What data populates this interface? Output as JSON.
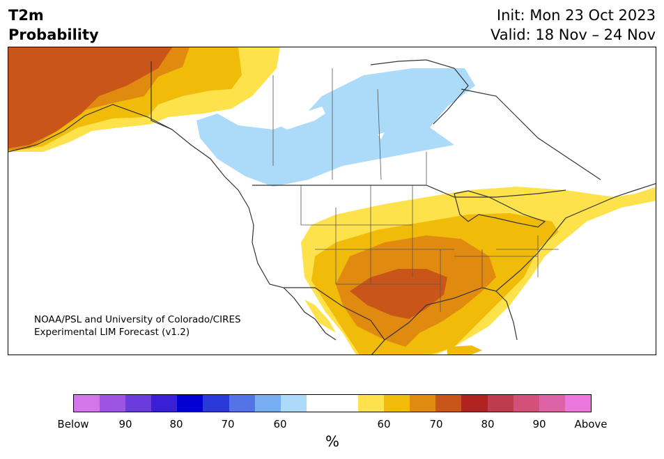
{
  "title": {
    "line1": "T2m",
    "line2": "Probability"
  },
  "init": {
    "line1": "Init: Mon 23 Oct 2023",
    "line2": "Valid: 18 Nov – 24 Nov"
  },
  "credit": {
    "line1": "NOAA/PSL and University of Colorado/CIRES",
    "line2": "Experimental LIM Forecast (v1.2)"
  },
  "colorbar": {
    "colors": [
      "#d376ea",
      "#9f53e3",
      "#6c3bdb",
      "#3a1fd6",
      "#0000d0",
      "#2a3ad8",
      "#5274e6",
      "#77adf1",
      "#acdaf9",
      "#ffffff",
      "#ffffff",
      "#fde24b",
      "#f1bb0a",
      "#e18a10",
      "#c95618",
      "#b02321",
      "#c13b4e",
      "#d25079",
      "#de62a6",
      "#ea78dd"
    ],
    "labels": [
      "Below",
      "90",
      "80",
      "70",
      "60",
      "60",
      "70",
      "80",
      "90",
      "Above"
    ],
    "unit": "%"
  },
  "map": {
    "probability_regions": [
      {
        "region": "Alaska",
        "category": "Above",
        "level": "70"
      },
      {
        "region": "Western Canada / Yukon",
        "category": "Above",
        "level": "50-60"
      },
      {
        "region": "Central Canada / Northern Plains",
        "category": "Below",
        "level": "50-60"
      },
      {
        "region": "Texas / Southern Plains",
        "category": "Above",
        "level": "70"
      },
      {
        "region": "Southeast US",
        "category": "Above",
        "level": "60-70"
      },
      {
        "region": "Northeast US",
        "category": "Above",
        "level": "50-60"
      }
    ]
  }
}
